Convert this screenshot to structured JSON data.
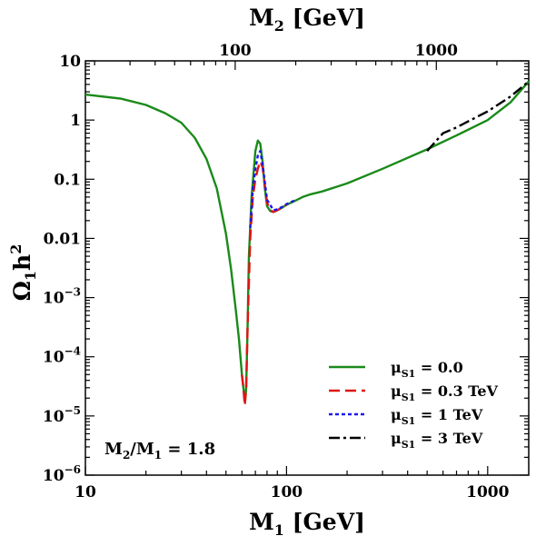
{
  "chart_data": {
    "type": "line",
    "xlabel": {
      "base": "M",
      "sub": "1",
      "rest": " [GeV]"
    },
    "x2label": {
      "base": "M",
      "sub": "2",
      "rest": " [GeV]"
    },
    "ylabel": {
      "base": "Ω",
      "sub": "1",
      "mid": "h",
      "sup": "2"
    },
    "xscale": "log",
    "yscale": "log",
    "xlim": [
      10,
      1600
    ],
    "ylim": [
      1e-06,
      10
    ],
    "x2_ratio": 1.8,
    "x_ticks": [
      {
        "value": 10,
        "label": "10"
      },
      {
        "value": 100,
        "label": "100"
      },
      {
        "value": 1000,
        "label": "1000"
      }
    ],
    "x2_ticks": [
      {
        "value": 100,
        "label": "100"
      },
      {
        "value": 1000,
        "label": "1000"
      }
    ],
    "y_ticks": [
      {
        "value": 10,
        "label": "10"
      },
      {
        "value": 1,
        "label": "1"
      },
      {
        "value": 0.1,
        "label": "0.1"
      },
      {
        "value": 0.01,
        "label": "0.01"
      },
      {
        "value": 0.001,
        "base": "10",
        "exp": "−3"
      },
      {
        "value": 0.0001,
        "base": "10",
        "exp": "−4"
      },
      {
        "value": 1e-05,
        "base": "10",
        "exp": "−5"
      },
      {
        "value": 1e-06,
        "base": "10",
        "exp": "−6"
      }
    ],
    "annotation": {
      "base": "M",
      "sub": "2",
      "mid": "/M",
      "sub2": "1",
      "rest": " = 1.8"
    },
    "legend_position": "bottom-right",
    "series": [
      {
        "name": {
          "base": "μ",
          "sub": "S1",
          "rest": " = 0.0"
        },
        "color": "#1a8a1a",
        "dash": "solid",
        "x": [
          10,
          15,
          20,
          25,
          30,
          35,
          40,
          45,
          50,
          53,
          56,
          58,
          60,
          61,
          62,
          62.5,
          63,
          64,
          65,
          67,
          70,
          72,
          74,
          76,
          78,
          80,
          83,
          86,
          90,
          95,
          100,
          110,
          120,
          130,
          150,
          200,
          300,
          500,
          700,
          1000,
          1300,
          1600
        ],
        "y": [
          2.7,
          2.3,
          1.8,
          1.3,
          0.9,
          0.5,
          0.22,
          0.07,
          0.012,
          0.003,
          0.0006,
          0.0002,
          5e-05,
          3e-05,
          2e-05,
          2e-05,
          3e-05,
          0.0003,
          0.005,
          0.05,
          0.3,
          0.45,
          0.4,
          0.2,
          0.07,
          0.035,
          0.029,
          0.028,
          0.03,
          0.033,
          0.037,
          0.043,
          0.05,
          0.055,
          0.062,
          0.085,
          0.15,
          0.32,
          0.55,
          1.0,
          2.0,
          4.5
        ]
      },
      {
        "name": {
          "base": "μ",
          "sub": "S1",
          "rest": " = 0.3 TeV"
        },
        "color": "#e01414",
        "dash": "12,6",
        "x": [
          60,
          61,
          62,
          63,
          64,
          66,
          68,
          70,
          72,
          74,
          76,
          78,
          80,
          83,
          86,
          90,
          95,
          100
        ],
        "y": [
          5e-05,
          3e-05,
          1.5e-05,
          3e-05,
          0.0003,
          0.01,
          0.05,
          0.1,
          0.15,
          0.2,
          0.16,
          0.08,
          0.04,
          0.03,
          0.028,
          0.03,
          0.033,
          0.037
        ]
      },
      {
        "name": {
          "base": "μ",
          "sub": "S1",
          "rest": " = 1 TeV"
        },
        "color": "#1a1aee",
        "dash": "4,3",
        "x": [
          66,
          68,
          70,
          72,
          74,
          76,
          80,
          86,
          90,
          95,
          100,
          110
        ],
        "y": [
          0.015,
          0.07,
          0.15,
          0.25,
          0.3,
          0.18,
          0.045,
          0.03,
          0.031,
          0.034,
          0.038,
          0.044
        ]
      },
      {
        "name": {
          "base": "μ",
          "sub": "S1",
          "rest": " = 3 TeV"
        },
        "color": "#000000",
        "dash": "12,4,3,4",
        "x": [
          500,
          600,
          700,
          800,
          1000,
          1300,
          1600
        ],
        "y": [
          0.3,
          0.6,
          0.75,
          0.95,
          1.4,
          2.5,
          4.5
        ]
      }
    ]
  }
}
